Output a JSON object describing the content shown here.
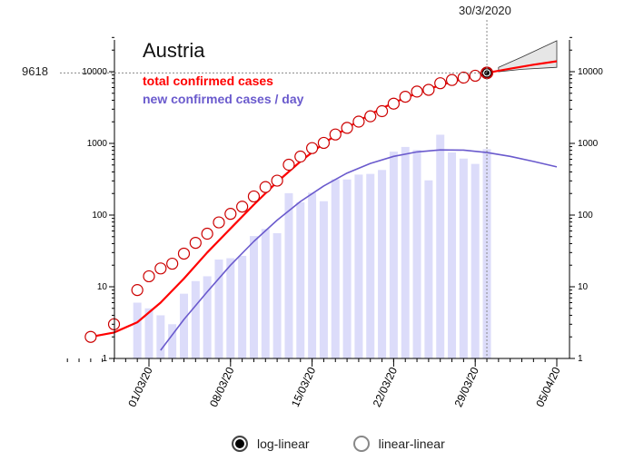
{
  "chart_data": {
    "type": "line",
    "title": "Austria",
    "x_dates": [
      "23/02/20",
      "24/02/20",
      "25/02/20",
      "26/02/20",
      "27/02/20",
      "28/02/20",
      "29/02/20",
      "01/03/20",
      "02/03/20",
      "03/03/20",
      "04/03/20",
      "05/03/20",
      "06/03/20",
      "07/03/20",
      "08/03/20",
      "09/03/20",
      "10/03/20",
      "11/03/20",
      "12/03/20",
      "13/03/20",
      "14/03/20",
      "15/03/20",
      "16/03/20",
      "17/03/20",
      "18/03/20",
      "19/03/20",
      "20/03/20",
      "21/03/20",
      "22/03/20",
      "23/03/20",
      "24/03/20",
      "25/03/20",
      "26/03/20",
      "27/03/20",
      "28/03/20",
      "29/03/20",
      "30/03/20",
      "31/03/20",
      "01/04/20",
      "02/04/20",
      "03/04/20",
      "04/04/20",
      "05/04/20"
    ],
    "x_tick_labels": [
      "01/03/20",
      "08/03/20",
      "15/03/20",
      "22/03/20",
      "29/03/20",
      "05/04/20"
    ],
    "y_scale": "log",
    "ylim": [
      1,
      30000
    ],
    "y_tick_labels": [
      "1",
      "10",
      "100",
      "1000",
      "10000"
    ],
    "current_date_label": "30/3/2020",
    "current_value_label": "9618",
    "series": [
      {
        "name": "total confirmed cases",
        "color": "#ff0000",
        "observed": [
          {
            "date": "25/02/20",
            "value": 2
          },
          {
            "date": "27/02/20",
            "value": 3
          },
          {
            "date": "29/02/20",
            "value": 9
          },
          {
            "date": "01/03/20",
            "value": 14
          },
          {
            "date": "02/03/20",
            "value": 18
          },
          {
            "date": "03/03/20",
            "value": 21
          },
          {
            "date": "04/03/20",
            "value": 29
          },
          {
            "date": "05/03/20",
            "value": 41
          },
          {
            "date": "06/03/20",
            "value": 55
          },
          {
            "date": "07/03/20",
            "value": 79
          },
          {
            "date": "08/03/20",
            "value": 104
          },
          {
            "date": "09/03/20",
            "value": 131
          },
          {
            "date": "10/03/20",
            "value": 182
          },
          {
            "date": "11/03/20",
            "value": 246
          },
          {
            "date": "12/03/20",
            "value": 302
          },
          {
            "date": "13/03/20",
            "value": 504
          },
          {
            "date": "14/03/20",
            "value": 655
          },
          {
            "date": "15/03/20",
            "value": 860
          },
          {
            "date": "16/03/20",
            "value": 1016
          },
          {
            "date": "17/03/20",
            "value": 1332
          },
          {
            "date": "18/03/20",
            "value": 1646
          },
          {
            "date": "19/03/20",
            "value": 2013
          },
          {
            "date": "20/03/20",
            "value": 2388
          },
          {
            "date": "21/03/20",
            "value": 2814
          },
          {
            "date": "22/03/20",
            "value": 3582
          },
          {
            "date": "23/03/20",
            "value": 4474
          },
          {
            "date": "24/03/20",
            "value": 5283
          },
          {
            "date": "25/03/20",
            "value": 5588
          },
          {
            "date": "26/03/20",
            "value": 6909
          },
          {
            "date": "27/03/20",
            "value": 7657
          },
          {
            "date": "28/03/20",
            "value": 8271
          },
          {
            "date": "29/03/20",
            "value": 8788
          },
          {
            "date": "30/03/20",
            "value": 9618
          }
        ],
        "fit": [
          {
            "date": "25/02/20",
            "value": 2
          },
          {
            "date": "27/02/20",
            "value": 2.3
          },
          {
            "date": "29/02/20",
            "value": 3.2
          },
          {
            "date": "02/03/20",
            "value": 6
          },
          {
            "date": "04/03/20",
            "value": 13
          },
          {
            "date": "06/03/20",
            "value": 30
          },
          {
            "date": "08/03/20",
            "value": 65
          },
          {
            "date": "10/03/20",
            "value": 140
          },
          {
            "date": "12/03/20",
            "value": 290
          },
          {
            "date": "14/03/20",
            "value": 560
          },
          {
            "date": "16/03/20",
            "value": 1000
          },
          {
            "date": "18/03/20",
            "value": 1650
          },
          {
            "date": "20/03/20",
            "value": 2550
          },
          {
            "date": "22/03/20",
            "value": 3700
          },
          {
            "date": "24/03/20",
            "value": 5000
          },
          {
            "date": "26/03/20",
            "value": 6500
          },
          {
            "date": "28/03/20",
            "value": 8000
          },
          {
            "date": "30/03/20",
            "value": 9618
          },
          {
            "date": "01/04/20",
            "value": 11000
          },
          {
            "date": "03/04/20",
            "value": 12500
          },
          {
            "date": "05/04/20",
            "value": 14000
          }
        ],
        "forecast_band": [
          {
            "date": "31/03/20",
            "low": 10000,
            "high": 11500
          },
          {
            "date": "02/04/20",
            "low": 10800,
            "high": 16000
          },
          {
            "date": "05/04/20",
            "low": 11500,
            "high": 27000
          }
        ]
      },
      {
        "name": "new confirmed cases / day",
        "color": "#6a5acd",
        "bar_color": "#dcdcfa",
        "daily": [
          {
            "date": "29/02/20",
            "value": 6
          },
          {
            "date": "01/03/20",
            "value": 5
          },
          {
            "date": "02/03/20",
            "value": 4
          },
          {
            "date": "03/03/20",
            "value": 3
          },
          {
            "date": "04/03/20",
            "value": 8
          },
          {
            "date": "05/03/20",
            "value": 12
          },
          {
            "date": "06/03/20",
            "value": 14
          },
          {
            "date": "07/03/20",
            "value": 24
          },
          {
            "date": "08/03/20",
            "value": 25
          },
          {
            "date": "09/03/20",
            "value": 27
          },
          {
            "date": "10/03/20",
            "value": 51
          },
          {
            "date": "11/03/20",
            "value": 64
          },
          {
            "date": "12/03/20",
            "value": 56
          },
          {
            "date": "13/03/20",
            "value": 202
          },
          {
            "date": "14/03/20",
            "value": 151
          },
          {
            "date": "15/03/20",
            "value": 205
          },
          {
            "date": "16/03/20",
            "value": 156
          },
          {
            "date": "17/03/20",
            "value": 316
          },
          {
            "date": "18/03/20",
            "value": 314
          },
          {
            "date": "19/03/20",
            "value": 367
          },
          {
            "date": "20/03/20",
            "value": 375
          },
          {
            "date": "21/03/20",
            "value": 426
          },
          {
            "date": "22/03/20",
            "value": 768
          },
          {
            "date": "23/03/20",
            "value": 892
          },
          {
            "date": "24/03/20",
            "value": 809
          },
          {
            "date": "25/03/20",
            "value": 305
          },
          {
            "date": "26/03/20",
            "value": 1321
          },
          {
            "date": "27/03/20",
            "value": 748
          },
          {
            "date": "28/03/20",
            "value": 614
          },
          {
            "date": "29/03/20",
            "value": 517
          },
          {
            "date": "30/03/20",
            "value": 830
          }
        ],
        "fit": [
          {
            "date": "02/03/20",
            "value": 1.3
          },
          {
            "date": "04/03/20",
            "value": 3.5
          },
          {
            "date": "06/03/20",
            "value": 8.5
          },
          {
            "date": "08/03/20",
            "value": 20
          },
          {
            "date": "10/03/20",
            "value": 43
          },
          {
            "date": "12/03/20",
            "value": 85
          },
          {
            "date": "14/03/20",
            "value": 155
          },
          {
            "date": "16/03/20",
            "value": 255
          },
          {
            "date": "18/03/20",
            "value": 385
          },
          {
            "date": "20/03/20",
            "value": 525
          },
          {
            "date": "22/03/20",
            "value": 660
          },
          {
            "date": "24/03/20",
            "value": 760
          },
          {
            "date": "26/03/20",
            "value": 810
          },
          {
            "date": "28/03/20",
            "value": 805
          },
          {
            "date": "30/03/20",
            "value": 745
          },
          {
            "date": "01/04/20",
            "value": 660
          },
          {
            "date": "03/04/20",
            "value": 560
          },
          {
            "date": "05/04/20",
            "value": 470
          }
        ]
      }
    ],
    "grid": false,
    "legend_position": "top-left"
  },
  "colors": {
    "total": "#ff0000",
    "daily_line": "#6a5acd",
    "daily_bar": "#dcdcfa",
    "band": "#cccccc",
    "guide": "#888888"
  },
  "modes": {
    "log_label": "log-linear",
    "linear_label": "linear-linear",
    "selected": "log-linear"
  }
}
